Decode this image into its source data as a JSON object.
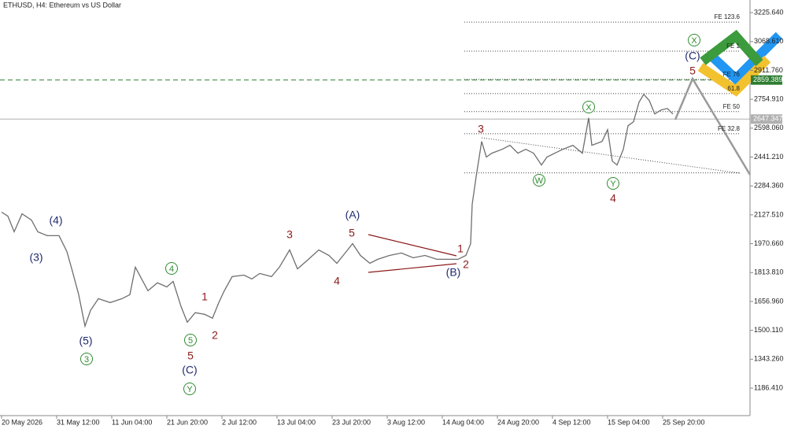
{
  "chart_data": {
    "type": "line",
    "title": "ETHUSD, H4:  Ethereum vs US Dollar",
    "color": "#6e6e6e",
    "xlim": [
      -2,
      951
    ],
    "ylim": [
      1037,
      3294
    ],
    "xticks": [
      {
        "value": 0,
        "label": "20 May 2026"
      },
      {
        "value": 70,
        "label": "31 May 12:00"
      },
      {
        "value": 140,
        "label": "11 Jun 04:00"
      },
      {
        "value": 210,
        "label": "21 Jun 20:00"
      },
      {
        "value": 280,
        "label": "2 Jul 12:00"
      },
      {
        "value": 350,
        "label": "13 Jul 04:00"
      },
      {
        "value": 420,
        "label": "23 Jul 20:00"
      },
      {
        "value": 490,
        "label": "3 Aug 12:00"
      },
      {
        "value": 560,
        "label": "14 Aug 04:00"
      },
      {
        "value": 630,
        "label": "24 Aug 20:00"
      },
      {
        "value": 700,
        "label": "4 Sep 12:00"
      },
      {
        "value": 770,
        "label": "15 Sep 04:00"
      },
      {
        "value": 840,
        "label": "25 Sep 20:00"
      }
    ],
    "yticks": [
      {
        "value": 3225.64,
        "label": "3225.640"
      },
      {
        "value": 3068.61,
        "label": "3068.610"
      },
      {
        "value": 2911.76,
        "label": "2911.760"
      },
      {
        "value": 2754.91,
        "label": "2754.910"
      },
      {
        "value": 2598.06,
        "label": "2598.060"
      },
      {
        "value": 2441.21,
        "label": "2441.210"
      },
      {
        "value": 2284.36,
        "label": "2284.360"
      },
      {
        "value": 2127.51,
        "label": "2127.510"
      },
      {
        "value": 1970.66,
        "label": "1970.660"
      },
      {
        "value": 1813.81,
        "label": "1813.810"
      },
      {
        "value": 1656.96,
        "label": "1656.960"
      },
      {
        "value": 1500.11,
        "label": "1500.110"
      },
      {
        "value": 1343.26,
        "label": "1343.260"
      },
      {
        "value": 1186.41,
        "label": "1186.410"
      }
    ],
    "x": [
      0,
      8,
      16,
      26,
      38,
      46,
      58,
      73,
      83,
      90,
      98,
      106,
      113,
      123,
      138,
      153,
      163,
      170,
      178,
      186,
      198,
      210,
      218,
      228,
      236,
      246,
      258,
      268,
      276,
      283,
      293,
      308,
      318,
      328,
      343,
      353,
      366,
      376,
      390,
      403,
      416,
      426,
      438,
      446,
      456,
      468,
      478,
      493,
      508,
      523,
      538,
      553,
      568,
      580,
      590,
      596,
      598,
      603,
      610,
      616,
      623,
      636,
      646,
      656,
      666,
      676,
      686,
      693,
      703,
      713,
      726,
      738,
      746,
      750,
      763,
      770,
      776,
      782,
      790,
      796,
      803,
      810,
      816,
      823,
      830,
      838,
      846,
      853
    ],
    "values": [
      2142,
      2120,
      2035,
      2133,
      2099,
      2035,
      2014,
      2014,
      1928,
      1821,
      1694,
      1523,
      1608,
      1672,
      1651,
      1672,
      1694,
      1843,
      1779,
      1715,
      1758,
      1736,
      1766,
      1630,
      1544,
      1596,
      1587,
      1566,
      1651,
      1715,
      1792,
      1800,
      1779,
      1809,
      1792,
      1843,
      1937,
      1834,
      1886,
      1937,
      1907,
      1864,
      1928,
      1971,
      1907,
      1864,
      1886,
      1907,
      1920,
      1894,
      1907,
      1886,
      1886,
      1886,
      1907,
      1971,
      2185,
      2334,
      2526,
      2441,
      2462,
      2483,
      2505,
      2462,
      2483,
      2462,
      2398,
      2441,
      2462,
      2483,
      2505,
      2462,
      2654,
      2505,
      2526,
      2590,
      2419,
      2398,
      2483,
      2611,
      2633,
      2739,
      2782,
      2748,
      2675,
      2697,
      2705,
      2675
    ],
    "levels": [
      {
        "value": 3174,
        "label": "FE 123.6"
      },
      {
        "value": 3016,
        "label": "FE 1"
      },
      {
        "value": 2863,
        "label": "FE 76"
      },
      {
        "value": 2786,
        "label": "61.8"
      },
      {
        "value": 2688,
        "label": "FE 50"
      },
      {
        "value": 2568,
        "label": "FE 32.8"
      },
      {
        "value": 2355,
        "label": null
      }
    ],
    "price_lines": [
      {
        "value": 2859.389,
        "color": "#2e7d32"
      },
      {
        "value": 2647.347,
        "color": "#b0b0b0"
      }
    ],
    "annotations": [
      {
        "text": "(4)",
        "color": "#1f2a6e"
      },
      {
        "text": "(3)",
        "color": "#1f2a6e"
      },
      {
        "text": "(5)",
        "color": "#1f2a6e"
      },
      {
        "text": "3",
        "color": "#2e8b2e",
        "circled": true
      },
      {
        "text": "4",
        "color": "#2e8b2e",
        "circled": true
      },
      {
        "text": "1",
        "color": "#8b1a1a"
      },
      {
        "text": "5",
        "color": "#2e8b2e",
        "circled": true
      },
      {
        "text": "5",
        "color": "#8b1a1a"
      },
      {
        "text": "(C)",
        "color": "#1f2a6e"
      },
      {
        "text": "Y",
        "color": "#2e8b2e",
        "circled": true
      },
      {
        "text": "2",
        "color": "#8b1a1a"
      },
      {
        "text": "3",
        "color": "#8b1a1a"
      },
      {
        "text": "(A)",
        "color": "#1f2a6e"
      },
      {
        "text": "5",
        "color": "#8b1a1a"
      },
      {
        "text": "4",
        "color": "#8b1a1a"
      },
      {
        "text": "1",
        "color": "#8b1a1a"
      },
      {
        "text": "2",
        "color": "#8b1a1a"
      },
      {
        "text": "(B)",
        "color": "#1f2a6e"
      },
      {
        "text": "3",
        "color": "#8b1a1a"
      },
      {
        "text": "W",
        "color": "#2e8b2e",
        "circled": true
      },
      {
        "text": "X",
        "color": "#2e8b2e",
        "circled": true
      },
      {
        "text": "Y",
        "color": "#2e8b2e",
        "circled": true
      },
      {
        "text": "4",
        "color": "#8b1a1a"
      },
      {
        "text": "X",
        "color": "#2e8b2e",
        "circled": true
      },
      {
        "text": "(C)",
        "color": "#1f2a6e"
      },
      {
        "text": "5",
        "color": "#8b1a1a"
      }
    ]
  }
}
